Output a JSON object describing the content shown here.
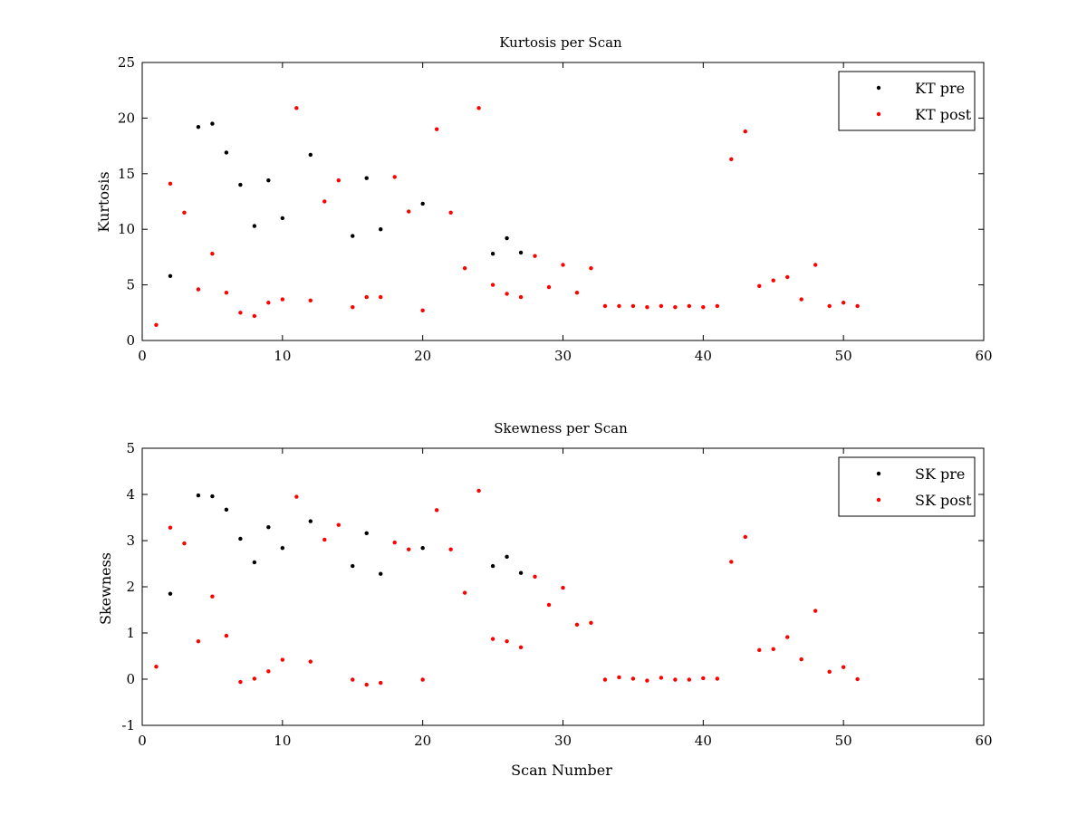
{
  "chart_data": [
    {
      "type": "scatter",
      "title": "Kurtosis per Scan",
      "xlabel": "",
      "ylabel": "Kurtosis",
      "xlim": [
        0,
        60
      ],
      "ylim": [
        0,
        25
      ],
      "xticks": [
        "0",
        "10",
        "20",
        "30",
        "40",
        "50",
        "60"
      ],
      "yticks": [
        "0",
        "5",
        "10",
        "15",
        "20",
        "25"
      ],
      "grid": false,
      "legend_position": "top-right",
      "series": [
        {
          "name": "KT pre",
          "color": "#000000",
          "x": [
            2,
            4,
            5,
            6,
            7,
            8,
            9,
            10,
            12,
            15,
            16,
            17,
            20,
            25,
            26,
            27
          ],
          "y": [
            5.8,
            19.2,
            19.5,
            16.9,
            14.0,
            10.3,
            14.4,
            11.0,
            16.7,
            9.4,
            14.6,
            10.0,
            12.3,
            7.8,
            9.2,
            7.9
          ]
        },
        {
          "name": "KT post",
          "color": "#ff0000",
          "x": [
            1,
            2,
            3,
            4,
            5,
            6,
            7,
            8,
            9,
            10,
            11,
            12,
            13,
            14,
            15,
            16,
            17,
            18,
            19,
            20,
            21,
            22,
            23,
            24,
            25,
            26,
            27,
            28,
            29,
            30,
            31,
            32,
            33,
            34,
            35,
            36,
            37,
            38,
            39,
            40,
            41,
            42,
            43,
            44,
            45,
            46,
            47,
            48,
            49,
            50,
            51
          ],
          "y": [
            1.4,
            14.1,
            11.5,
            4.6,
            7.8,
            4.3,
            2.5,
            2.2,
            3.4,
            3.7,
            20.9,
            3.6,
            12.5,
            14.4,
            3.0,
            3.9,
            3.9,
            14.7,
            11.6,
            2.7,
            19.0,
            11.5,
            6.5,
            20.9,
            5.0,
            4.2,
            3.9,
            7.6,
            4.8,
            6.8,
            4.3,
            6.5,
            3.1,
            3.1,
            3.1,
            3.0,
            3.1,
            3.0,
            3.1,
            3.0,
            3.1,
            16.3,
            18.8,
            4.9,
            5.4,
            5.7,
            3.7,
            6.8,
            3.1,
            3.4,
            3.1
          ]
        }
      ]
    },
    {
      "type": "scatter",
      "title": "Skewness per Scan",
      "xlabel": "Scan Number",
      "ylabel": "Skewness",
      "xlim": [
        0,
        60
      ],
      "ylim": [
        -1,
        5
      ],
      "xticks": [
        "0",
        "10",
        "20",
        "30",
        "40",
        "50",
        "60"
      ],
      "yticks": [
        "-1",
        "0",
        "1",
        "2",
        "3",
        "4",
        "5"
      ],
      "grid": false,
      "legend_position": "top-right",
      "series": [
        {
          "name": "SK pre",
          "color": "#000000",
          "x": [
            2,
            4,
            5,
            6,
            7,
            8,
            9,
            10,
            12,
            15,
            16,
            17,
            20,
            25,
            26,
            27
          ],
          "y": [
            1.85,
            3.98,
            3.96,
            3.67,
            3.04,
            2.53,
            3.29,
            2.84,
            3.42,
            2.45,
            3.16,
            2.28,
            2.84,
            2.45,
            2.65,
            2.3
          ]
        },
        {
          "name": "SK post",
          "color": "#ff0000",
          "x": [
            1,
            2,
            3,
            4,
            5,
            6,
            7,
            8,
            9,
            10,
            11,
            12,
            13,
            14,
            15,
            16,
            17,
            18,
            19,
            20,
            21,
            22,
            23,
            24,
            25,
            26,
            27,
            28,
            29,
            30,
            31,
            32,
            33,
            34,
            35,
            36,
            37,
            38,
            39,
            40,
            41,
            42,
            43,
            44,
            45,
            46,
            47,
            48,
            49,
            50,
            51
          ],
          "y": [
            0.27,
            3.28,
            2.94,
            0.82,
            1.79,
            0.94,
            -0.06,
            0.01,
            0.17,
            0.42,
            3.95,
            0.38,
            3.02,
            3.34,
            -0.01,
            -0.12,
            -0.08,
            2.96,
            2.81,
            -0.01,
            3.66,
            2.81,
            1.87,
            4.08,
            0.87,
            0.82,
            0.69,
            2.22,
            1.61,
            1.98,
            1.18,
            1.22,
            -0.01,
            0.04,
            0.01,
            -0.03,
            0.03,
            -0.01,
            -0.01,
            0.02,
            0.01,
            2.54,
            3.08,
            0.63,
            0.65,
            0.91,
            0.43,
            1.48,
            0.16,
            0.26,
            0.0
          ]
        }
      ]
    }
  ]
}
